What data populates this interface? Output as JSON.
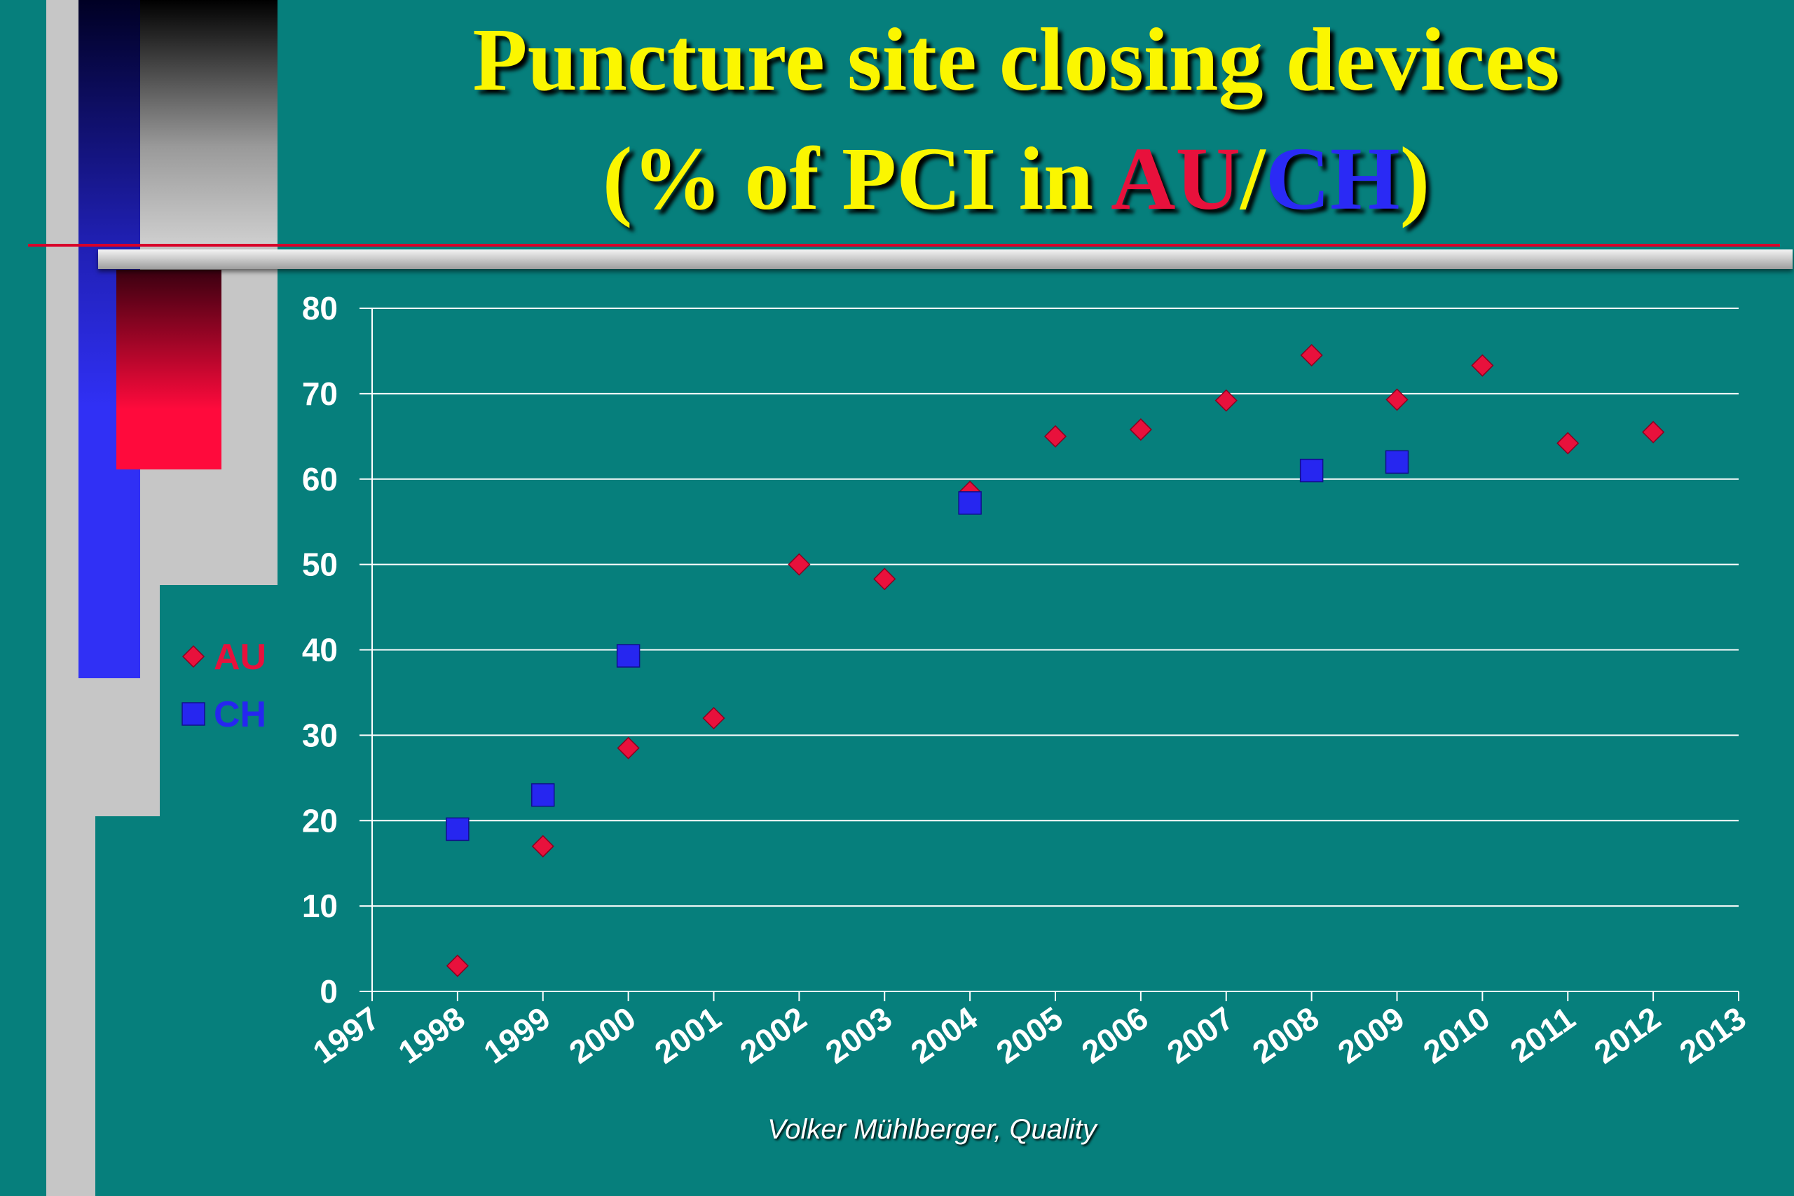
{
  "slide": {
    "title_line1": "Puncture site closing devices",
    "title_line2_prefix": "(% of PCI in ",
    "title_line2_au": "AU",
    "title_line2_sep": "/",
    "title_line2_ch": "CH",
    "title_line2_suffix": ")",
    "credit": "Volker Mühlberger, Quality"
  },
  "colors": {
    "background": "#067f7c",
    "title": "#fbf600",
    "au": "#e8113c",
    "ch": "#2626f0",
    "grid": "#ffffff"
  },
  "chart_data": {
    "type": "scatter",
    "xlim": [
      1997,
      2013
    ],
    "ylim": [
      0,
      80
    ],
    "x_ticks": [
      1997,
      1998,
      1999,
      2000,
      2001,
      2002,
      2003,
      2004,
      2005,
      2006,
      2007,
      2008,
      2009,
      2010,
      2011,
      2012,
      2013
    ],
    "y_ticks": [
      0,
      10,
      20,
      30,
      40,
      50,
      60,
      70,
      80
    ],
    "grid": true,
    "legend_position": "left",
    "series": [
      {
        "name": "AU",
        "marker": "diamond",
        "color": "#e8113c",
        "points": [
          [
            1998,
            3
          ],
          [
            1999,
            17
          ],
          [
            2000,
            28.5
          ],
          [
            2001,
            32
          ],
          [
            2002,
            50
          ],
          [
            2003,
            48.3
          ],
          [
            2004,
            58.5
          ],
          [
            2005,
            65
          ],
          [
            2006,
            65.8
          ],
          [
            2007,
            69.2
          ],
          [
            2008,
            74.5
          ],
          [
            2009,
            69.3
          ],
          [
            2010,
            73.3
          ],
          [
            2011,
            64.2
          ],
          [
            2012,
            65.5
          ]
        ]
      },
      {
        "name": "CH",
        "marker": "square",
        "color": "#2626f0",
        "points": [
          [
            1998,
            19
          ],
          [
            1999,
            23
          ],
          [
            2000,
            39.3
          ],
          [
            2004,
            57.2
          ],
          [
            2008,
            61
          ],
          [
            2009,
            62
          ]
        ]
      }
    ]
  }
}
